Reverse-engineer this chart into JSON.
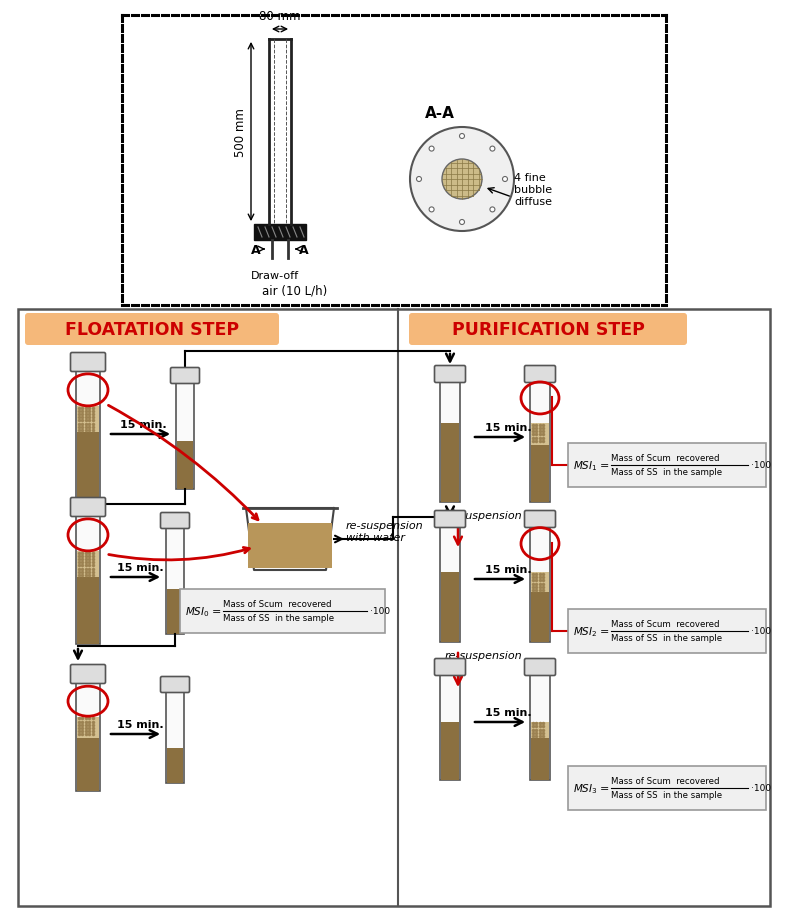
{
  "bg_color": "#ffffff",
  "tube_brown": "#8B7040",
  "tube_tan": "#B8965A",
  "tube_scum": "#D4C090",
  "tube_outline": "#444444",
  "tube_glass_top": "#CCCCCC",
  "floatation_header_bg": "#F5B87A",
  "purification_header_bg": "#F5B87A",
  "floatation_header_text": "FLOATATION STEP",
  "purification_header_text": "PURIFICATION STEP",
  "header_color": "#CC0000",
  "arrow_red": "#CC0000",
  "circle_red": "#CC0000",
  "formula_bg": "#F0F0F0",
  "formula_border": "#999999",
  "dim_80mm": "80 mm",
  "dim_500mm": "500 mm",
  "label_AA": "A-A",
  "label_drawoff": "Draw-off",
  "label_air": "air (10 L/h)",
  "label_fine_bubble": "4 fine\nbubble\ndiffuse",
  "label_resuspension_water": "re-suspension\nwith water",
  "label_resuspension": "re-suspension",
  "label_15min": "15 min."
}
